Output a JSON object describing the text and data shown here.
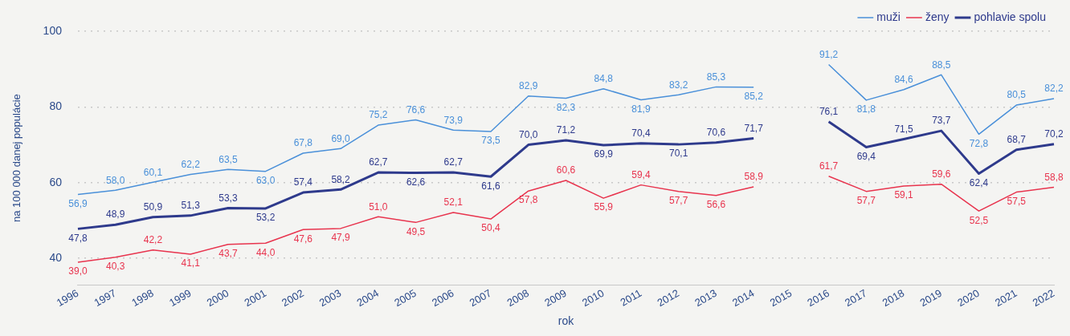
{
  "chart_data": {
    "type": "line",
    "xlabel": "rok",
    "ylabel": "na 100 000 danej populácie",
    "categories": [
      "1996",
      "1997",
      "1998",
      "1999",
      "2000",
      "2001",
      "2002",
      "2003",
      "2004",
      "2005",
      "2006",
      "2007",
      "2008",
      "2009",
      "2010",
      "2011",
      "2012",
      "2013",
      "2014",
      "2015",
      "2016",
      "2017",
      "2018",
      "2019",
      "2020",
      "2021",
      "2022"
    ],
    "series": [
      {
        "name": "muži",
        "color": "#4a90d9",
        "values": [
          56.9,
          58.0,
          60.1,
          62.2,
          63.5,
          63.0,
          67.8,
          69.0,
          75.2,
          76.6,
          73.9,
          73.5,
          82.9,
          82.3,
          84.8,
          81.9,
          83.2,
          85.3,
          85.2,
          null,
          91.2,
          81.8,
          84.6,
          88.5,
          72.8,
          80.5,
          82.2
        ],
        "value_labels": [
          "56,9",
          "58,0",
          "60,1",
          "62,2",
          "63,5",
          "63,0",
          "67,8",
          "69,0",
          "75,2",
          "76,6",
          "73,9",
          "73,5",
          "82,9",
          "82,3",
          "84,8",
          "81,9",
          "83,2",
          "85,3",
          "85,2",
          null,
          "91,2",
          "81,8",
          "84,6",
          "88,5",
          "72,8",
          "80,5",
          "82,2"
        ]
      },
      {
        "name": "ženy",
        "color": "#e8344e",
        "values": [
          39.0,
          40.3,
          42.2,
          41.1,
          43.7,
          44.0,
          47.6,
          47.9,
          51.0,
          49.5,
          52.1,
          50.4,
          57.8,
          60.6,
          55.9,
          59.4,
          57.7,
          56.6,
          58.9,
          null,
          61.7,
          57.7,
          59.1,
          59.6,
          52.5,
          57.5,
          58.8
        ],
        "value_labels": [
          "39,0",
          "40,3",
          "42,2",
          "41,1",
          "43,7",
          "44,0",
          "47,6",
          "47,9",
          "51,0",
          "49,5",
          "52,1",
          "50,4",
          "57,8",
          "60,6",
          "55,9",
          "59,4",
          "57,7",
          "56,6",
          "58,9",
          null,
          "61,7",
          "57,7",
          "59,1",
          "59,6",
          "52,5",
          "57,5",
          "58,8"
        ]
      },
      {
        "name": "pohlavie spolu",
        "color": "#2e3a8c",
        "values": [
          47.8,
          48.9,
          50.9,
          51.3,
          53.3,
          53.2,
          57.4,
          58.2,
          62.7,
          62.6,
          62.7,
          61.6,
          70.0,
          71.2,
          69.9,
          70.4,
          70.1,
          70.6,
          71.7,
          null,
          76.1,
          69.4,
          71.5,
          73.7,
          62.4,
          68.7,
          70.2
        ],
        "value_labels": [
          "47,8",
          "48,9",
          "50,9",
          "51,3",
          "53,3",
          "53,2",
          "57,4",
          "58,2",
          "62,7",
          "62,6",
          "62,7",
          "61,6",
          "70,0",
          "71,2",
          "69,9",
          "70,4",
          "70,1",
          "70,6",
          "71,7",
          null,
          "76,1",
          "69,4",
          "71,5",
          "73,7",
          "62,4",
          "68,7",
          "70,2"
        ]
      }
    ],
    "ylim": [
      33,
      100
    ],
    "yticks": [
      40,
      60,
      80,
      100
    ],
    "grid": "y",
    "legend": "top right",
    "marker": "none",
    "line_style": "solid"
  }
}
